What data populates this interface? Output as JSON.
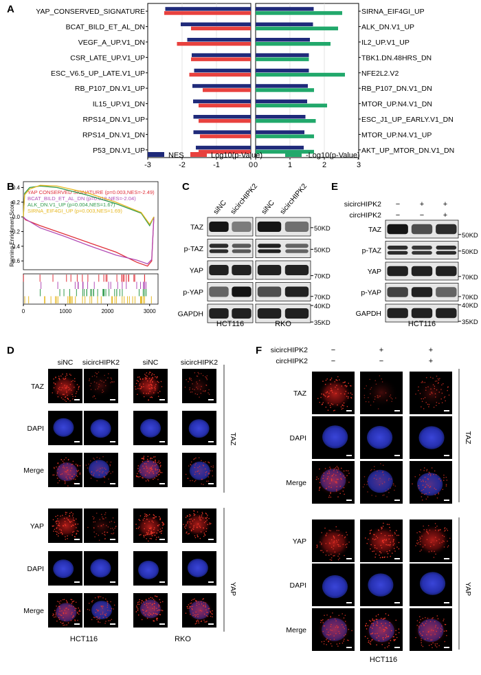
{
  "panels": {
    "A": "A",
    "B": "B",
    "C": "C",
    "D": "D",
    "E": "E",
    "F": "F"
  },
  "chart_data": [
    {
      "type": "bar",
      "panel": "A-left",
      "orientation": "horizontal",
      "categories": [
        "YAP_CONSERVED_SIGNATURE",
        "BCAT_BILD_ET_AL_DN",
        "VEGF_A_UP.V1_DN",
        "CSR_LATE_UP.V1_UP",
        "ESC_V6.5_UP_LATE.V1_UP",
        "RB_P107_DN.V1_UP",
        "IL15_UP.V1_DN",
        "RPS14_DN.V1_UP",
        "RPS14_DN.V1_DN",
        "P53_DN.V1_UP"
      ],
      "series": [
        {
          "name": "NES",
          "color": "#1f2a7a",
          "values": [
            -2.49,
            -2.04,
            -1.85,
            -1.72,
            -1.65,
            -1.7,
            -1.68,
            -1.67,
            -1.67,
            -1.6
          ]
        },
        {
          "name": "Log10(p-Value)",
          "color": "#e8413e",
          "values": [
            -2.52,
            -1.74,
            -2.15,
            -1.74,
            -1.79,
            -1.4,
            -1.52,
            -1.52,
            -1.48,
            -1.52
          ]
        }
      ],
      "xlim": [
        -3,
        0
      ],
      "xticks": [
        "-3",
        "-2",
        "-1",
        "0"
      ]
    },
    {
      "type": "bar",
      "panel": "A-right",
      "orientation": "horizontal",
      "categories": [
        "SIRNA_EIF4GI_UP",
        "ALK_DN.V1_UP",
        "IL2_UP.V1_UP",
        "TBK1.DN.48HRS_DN",
        "NFE2L2.V2",
        "RB_P107_DN.V1_DN",
        "MTOR_UP.N4.V1_DN",
        "ESC_J1_UP_EARLY.V1_DN",
        "MTOR_UP.N4.V1_UP",
        "AKT_UP_MTOR_DN.V1_DN"
      ],
      "series": [
        {
          "name": "NES",
          "color": "#1f2a7a",
          "values": [
            1.69,
            1.67,
            1.58,
            1.55,
            1.55,
            1.52,
            1.5,
            1.45,
            1.42,
            1.4
          ]
        },
        {
          "name": "-Log10(p-Value)",
          "color": "#21a86b",
          "values": [
            2.52,
            2.4,
            2.18,
            1.55,
            2.6,
            1.7,
            2.08,
            1.75,
            1.7,
            1.7
          ]
        }
      ],
      "xlim": [
        0,
        3
      ],
      "xticks": [
        "0",
        "1",
        "2",
        "3"
      ]
    },
    {
      "type": "line",
      "panel": "B",
      "ylabel": "Running Enrichment Score",
      "xlim": [
        0,
        3200
      ],
      "ylim": [
        -0.72,
        0.48
      ],
      "xticks": [
        "0",
        "1000",
        "2000",
        "3000"
      ],
      "yticks": [
        "0.4",
        "0.2",
        "0.0",
        "-0.2",
        "-0.4",
        "-0.6"
      ],
      "series": [
        {
          "name": "YAP CONSERVED SIGNATURE (p=0.003,NES=-2.49)",
          "color": "#e0303a",
          "x": [
            0,
            50,
            400,
            1000,
            1600,
            2200,
            2700,
            2950,
            3050,
            3100
          ],
          "y": [
            0,
            -0.04,
            -0.12,
            -0.24,
            -0.36,
            -0.48,
            -0.62,
            -0.67,
            -0.6,
            0
          ]
        },
        {
          "name": "BCAT_BILD_ET_AL_DN (p=0.018,NES=-2.04)",
          "color": "#b14bb5",
          "x": [
            0,
            50,
            400,
            1000,
            1600,
            2200,
            2700,
            2950,
            3050,
            3100
          ],
          "y": [
            0,
            -0.03,
            -0.15,
            -0.27,
            -0.4,
            -0.52,
            -0.59,
            -0.64,
            -0.58,
            0
          ]
        },
        {
          "name": "ALK_DN.V1_UP (p=0.004,NES=1.67)",
          "color": "#2f9a4a",
          "x": [
            0,
            30,
            150,
            400,
            800,
            1500,
            2200,
            2800,
            3000,
            3100
          ],
          "y": [
            0,
            0.32,
            0.4,
            0.42,
            0.4,
            0.3,
            0.18,
            0.05,
            -0.12,
            0
          ]
        },
        {
          "name": "SIRNA_EIF4GI_UP (p=0.003,NES=1.69)",
          "color": "#e6b822",
          "x": [
            0,
            30,
            150,
            400,
            800,
            1500,
            2200,
            2800,
            3000,
            3100
          ],
          "y": [
            0,
            0.3,
            0.38,
            0.43,
            0.42,
            0.33,
            0.2,
            0.06,
            -0.1,
            0
          ]
        }
      ]
    }
  ],
  "legendA": [
    {
      "label": "NES",
      "color": "#1f2a7a"
    },
    {
      "label": "Log10(p-Value)",
      "color": "#e8413e"
    },
    {
      "label": "-Log10(p-Value)",
      "color": "#21a86b"
    }
  ],
  "gseaTicks": {
    "colors": [
      "#e0303a",
      "#b14bb5",
      "#2f9a4a",
      "#e6b822"
    ],
    "counts": [
      24,
      20,
      30,
      40
    ]
  },
  "blotC": {
    "columns": [
      "siNC",
      "sicircHIPK2",
      "siNC",
      "sicircHIPK2"
    ],
    "rows": [
      "TAZ",
      "p-TAZ",
      "YAP",
      "p-YAP",
      "GAPDH"
    ],
    "markers": [
      "50KD",
      "50KD",
      "70KD",
      "70KD",
      "40KD",
      "35KD"
    ],
    "cellLines": [
      "HCT116",
      "RKO"
    ]
  },
  "blotE": {
    "conditions": [
      {
        "name": "sicircHIPK2",
        "signs": [
          "−",
          "+",
          "+"
        ]
      },
      {
        "name": "circHIPK2",
        "signs": [
          "−",
          "−",
          "+"
        ]
      }
    ],
    "rows": [
      "TAZ",
      "p-TAZ",
      "YAP",
      "p-YAP",
      "GAPDH"
    ],
    "markers": [
      "50KD",
      "50KD",
      "70KD",
      "70KD",
      "40KD",
      "35KD"
    ],
    "cellLine": "HCT116"
  },
  "panelD": {
    "columns": [
      "siNC",
      "sicircHIPK2",
      "siNC",
      "sicircHIPK2"
    ],
    "rows": [
      "TAZ",
      "DAPI",
      "Merge",
      "YAP",
      "DAPI",
      "Merge"
    ],
    "groups": [
      "TAZ",
      "YAP"
    ],
    "cellLines": [
      "HCT116",
      "RKO"
    ]
  },
  "panelF": {
    "conditions": [
      {
        "name": "sicircHIPK2",
        "signs": [
          "−",
          "+",
          "+"
        ]
      },
      {
        "name": "circHIPK2",
        "signs": [
          "−",
          "−",
          "+"
        ]
      }
    ],
    "rows": [
      "TAZ",
      "DAPI",
      "Merge",
      "YAP",
      "DAPI",
      "Merge"
    ],
    "groups": [
      "TAZ",
      "YAP"
    ],
    "cellLine": "HCT116"
  }
}
